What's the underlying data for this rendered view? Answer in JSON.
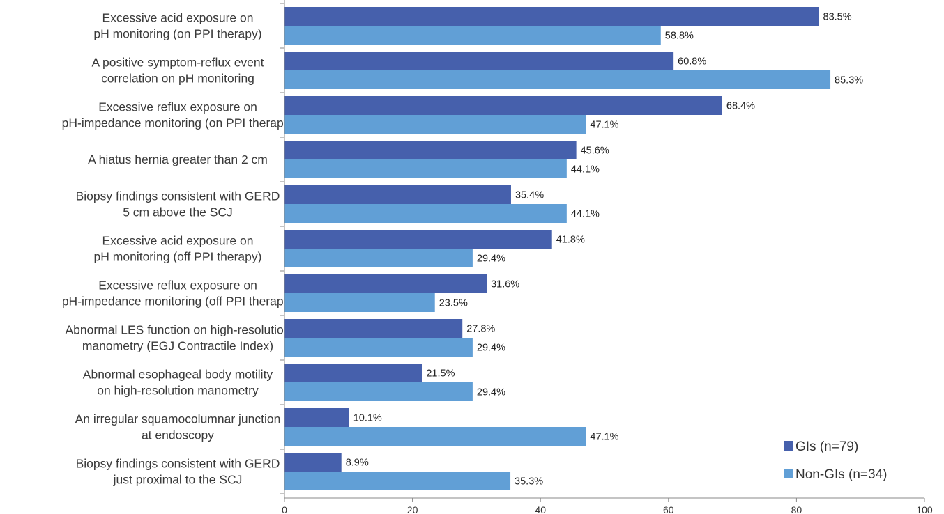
{
  "chart_data": {
    "type": "bar",
    "orientation": "horizontal",
    "title": "",
    "xlabel": "",
    "ylabel": "",
    "xlim": [
      0,
      100
    ],
    "x_ticks": [
      "0",
      "20",
      "40",
      "60",
      "80",
      "100"
    ],
    "grid": false,
    "legend_position": "bottom-right",
    "value_suffix": "%",
    "categories": [
      [
        "Excessive acid exposure on",
        "pH monitoring (on PPI therapy)"
      ],
      [
        "A positive symptom-reflux event",
        "correlation on pH monitoring"
      ],
      [
        "Excessive reflux exposure on",
        "pH-impedance monitoring (on PPI therapy)"
      ],
      [
        "A hiatus hernia greater than 2 cm"
      ],
      [
        "Biopsy findings consistent with GERD",
        "5 cm above the SCJ"
      ],
      [
        "Excessive acid exposure on",
        "pH monitoring (off PPI therapy)"
      ],
      [
        "Excessive reflux exposure on",
        "pH-impedance monitoring (off PPI therapy)"
      ],
      [
        "Abnormal LES function on high-resolution",
        "manometry (EGJ Contractile Index)"
      ],
      [
        "Abnormal esophageal body motility",
        "on high-resolution manometry"
      ],
      [
        "An irregular squamocolumnar junction",
        "at endoscopy"
      ],
      [
        "Biopsy findings consistent with GERD",
        "just proximal to the SCJ"
      ]
    ],
    "series": [
      {
        "name": "GIs (n=79)",
        "color": "#4660AC",
        "values": [
          83.5,
          60.8,
          68.4,
          45.6,
          35.4,
          41.8,
          31.6,
          27.8,
          21.5,
          10.1,
          8.9
        ],
        "labels": [
          "83.5%",
          "60.8%",
          "68.4%",
          "45.6%",
          "35.4%",
          "41.8%",
          "31.6%",
          "27.8%",
          "21.5%",
          "10.1%",
          "8.9%"
        ]
      },
      {
        "name": "Non-GIs (n=34)",
        "color": "#619FD6",
        "values": [
          58.8,
          85.3,
          47.1,
          44.1,
          44.1,
          29.4,
          23.5,
          29.4,
          29.4,
          47.1,
          35.3
        ],
        "labels": [
          "58.8%",
          "85.3%",
          "47.1%",
          "44.1%",
          "44.1%",
          "29.4%",
          "23.5%",
          "29.4%",
          "29.4%",
          "47.1%",
          "35.3%"
        ]
      }
    ]
  }
}
